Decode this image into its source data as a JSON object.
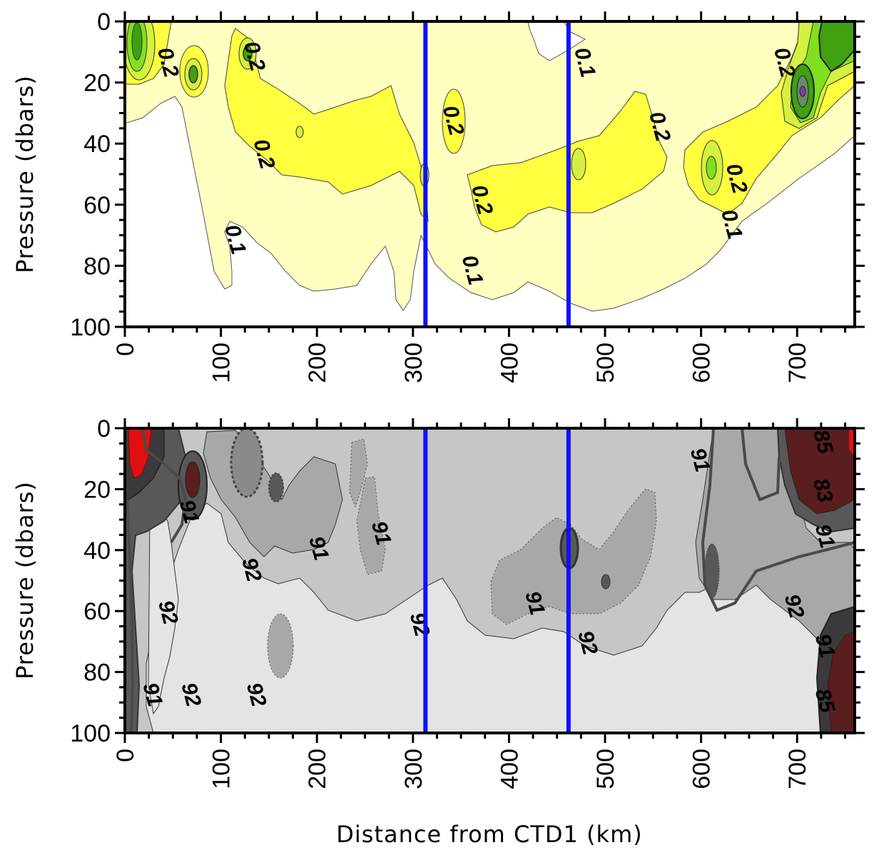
{
  "figure": {
    "xlabel": "Distance from CTD1 (km)"
  },
  "chart_data": [
    {
      "type": "heatmap",
      "title": "",
      "xlabel": "",
      "ylabel": "Pressure (dbars)",
      "xlim": [
        0,
        760
      ],
      "ylim": [
        100,
        0
      ],
      "x_ticks": [
        "0",
        "100",
        "200",
        "300",
        "400",
        "500",
        "600",
        "700"
      ],
      "y_ticks": [
        "0",
        "20",
        "40",
        "60",
        "80",
        "100"
      ],
      "contour_levels": [
        0.1,
        0.2
      ],
      "colors": {
        "low": "#ffffff",
        "level_0_1": "#ffffc0",
        "level_0_2": "#ffff40",
        "level_high_1": "#d4f040",
        "level_high_2": "#80e020",
        "level_high_3": "#40a010",
        "peak": "#8040a0"
      },
      "contour_labels": [
        {
          "text": "0.2",
          "x": 38,
          "y": 14
        },
        {
          "text": "0.2",
          "x": 128,
          "y": 12
        },
        {
          "text": "0.2",
          "x": 138,
          "y": 44
        },
        {
          "text": "0.1",
          "x": 108,
          "y": 72
        },
        {
          "text": "0.2",
          "x": 335,
          "y": 33
        },
        {
          "text": "0.2",
          "x": 365,
          "y": 59
        },
        {
          "text": "0.1",
          "x": 355,
          "y": 82
        },
        {
          "text": "0.1",
          "x": 472,
          "y": 14
        },
        {
          "text": "0.2",
          "x": 550,
          "y": 35
        },
        {
          "text": "0.2",
          "x": 630,
          "y": 52
        },
        {
          "text": "0.1",
          "x": 625,
          "y": 67
        },
        {
          "text": "0.2",
          "x": 680,
          "y": 14
        }
      ],
      "vertical_lines_x": [
        313,
        462
      ]
    },
    {
      "type": "heatmap",
      "title": "",
      "xlabel": "",
      "ylabel": "Pressure (dbars)",
      "xlim": [
        0,
        760
      ],
      "ylim": [
        100,
        0
      ],
      "x_ticks": [
        "0",
        "100",
        "200",
        "300",
        "400",
        "500",
        "600",
        "700"
      ],
      "y_ticks": [
        "0",
        "20",
        "40",
        "60",
        "80",
        "100"
      ],
      "contour_levels": [
        83,
        85,
        91,
        92
      ],
      "colors": {
        "above_92": "#e4e4e4",
        "level_92": "#c6c6c6",
        "level_91": "#a8a8a8",
        "dark": "#585858",
        "darker": "#3a3a3a",
        "dark_red": "#5a1e1e",
        "red": "#e01010"
      },
      "contour_labels": [
        {
          "text": "91",
          "x": 60,
          "y": 28
        },
        {
          "text": "92",
          "x": 125,
          "y": 47
        },
        {
          "text": "91",
          "x": 195,
          "y": 40
        },
        {
          "text": "91",
          "x": 260,
          "y": 35
        },
        {
          "text": "92",
          "x": 38,
          "y": 61
        },
        {
          "text": "91",
          "x": 22,
          "y": 88
        },
        {
          "text": "92",
          "x": 62,
          "y": 88
        },
        {
          "text": "92",
          "x": 130,
          "y": 88
        },
        {
          "text": "92",
          "x": 300,
          "y": 65
        },
        {
          "text": "91",
          "x": 420,
          "y": 58
        },
        {
          "text": "92",
          "x": 475,
          "y": 71
        },
        {
          "text": "91",
          "x": 592,
          "y": 11
        },
        {
          "text": "85",
          "x": 720,
          "y": 5
        },
        {
          "text": "83",
          "x": 720,
          "y": 21
        },
        {
          "text": "91",
          "x": 722,
          "y": 36
        },
        {
          "text": "92",
          "x": 690,
          "y": 59
        },
        {
          "text": "91",
          "x": 722,
          "y": 72
        },
        {
          "text": "85",
          "x": 722,
          "y": 90
        }
      ],
      "vertical_lines_x": [
        313,
        462
      ]
    }
  ]
}
